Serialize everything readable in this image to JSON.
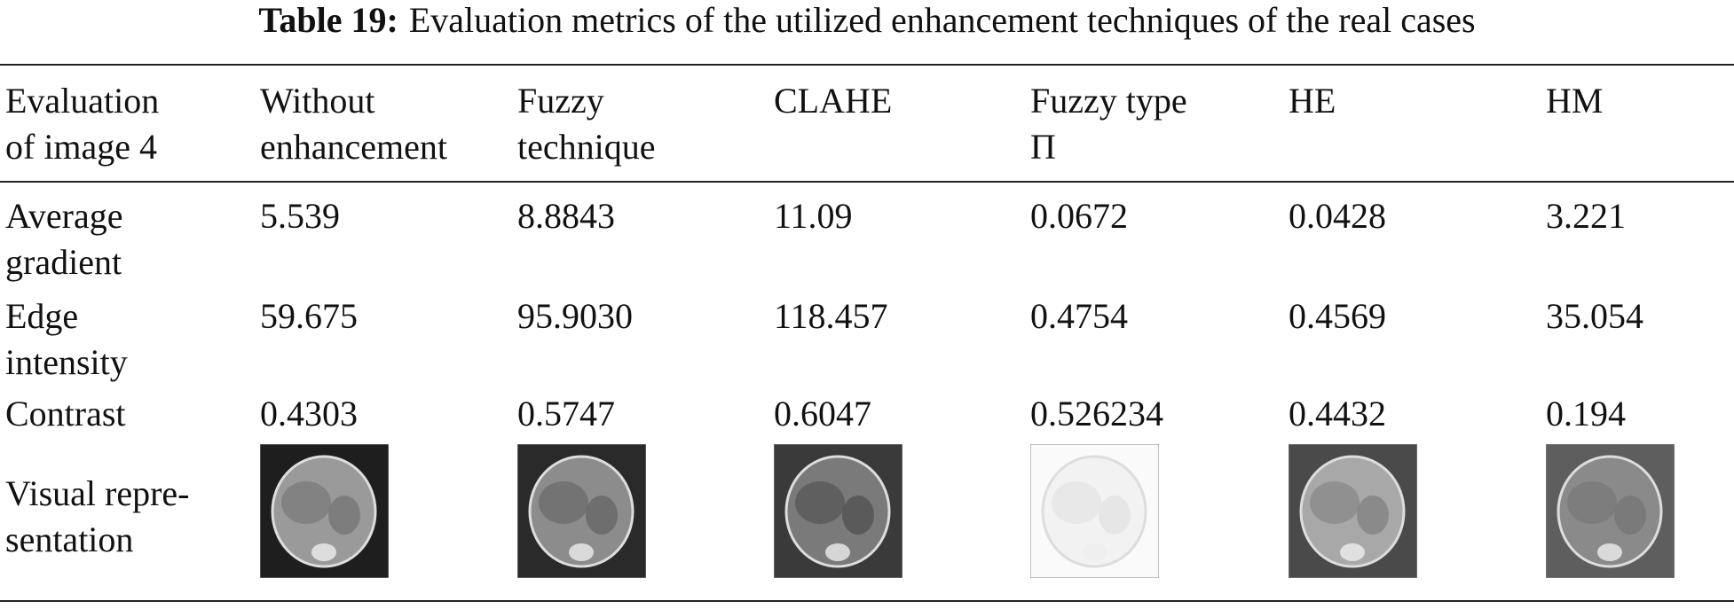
{
  "caption": {
    "label": "Table 19:",
    "text": "Evaluation metrics of the utilized enhancement techniques of the real cases"
  },
  "table": {
    "header": [
      "Evaluation\nof image 4",
      "Without\nenhancement",
      "Fuzzy\ntechnique",
      "CLAHE",
      "Fuzzy type\nΠ",
      "HE",
      "HM"
    ],
    "rows": [
      [
        "Average\ngradient",
        "5.539",
        "8.8843",
        "11.09",
        "0.0672",
        "0.0428",
        "3.221"
      ],
      [
        "Edge\nintensity",
        "59.675",
        "95.9030",
        "118.457",
        "0.4754",
        "0.4569",
        "35.054"
      ],
      [
        "Contrast",
        "0.4303",
        "0.5747",
        "0.6047",
        "0.526234",
        "0.4432",
        "0.194"
      ]
    ],
    "visual_row_label": "Visual repre-\nsentation"
  }
}
